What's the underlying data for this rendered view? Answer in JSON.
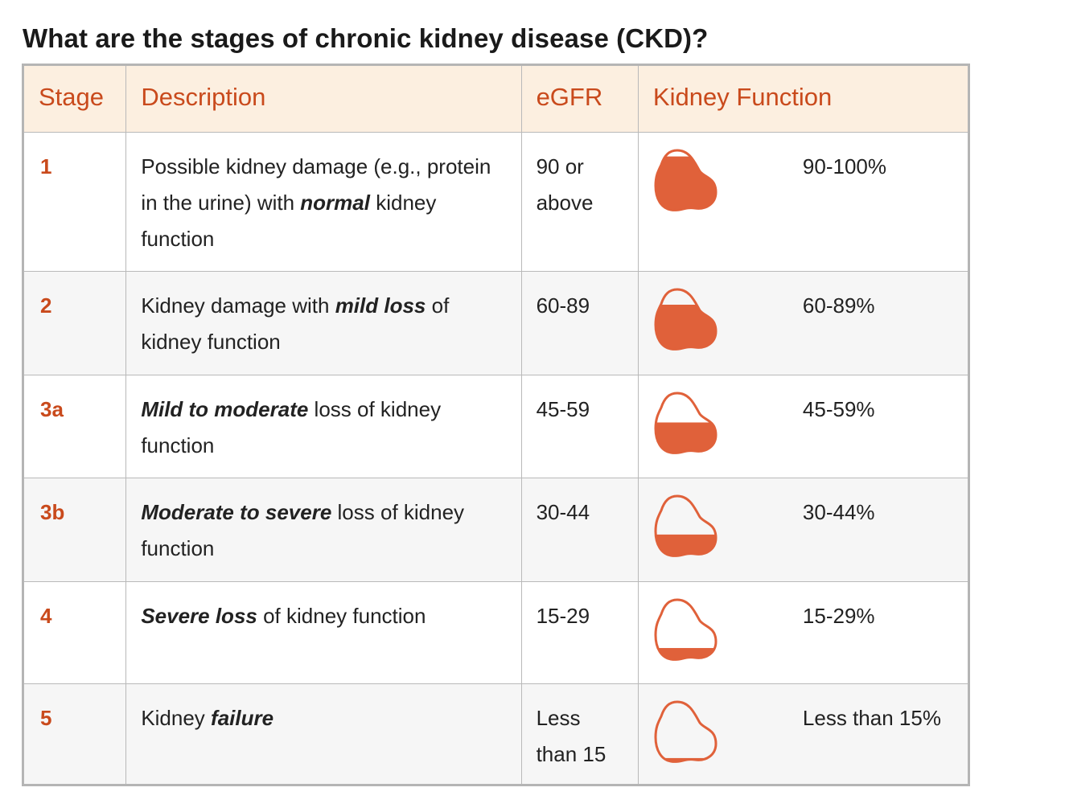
{
  "title": "What are the stages of chronic kidney disease (CKD)?",
  "colors": {
    "accent": "#c94a1c",
    "kidney_fill": "#e0613a",
    "header_bg": "#fcefe0",
    "stripe_bg": "#f6f6f6",
    "border": "#b9b9b9"
  },
  "table": {
    "headers": {
      "stage": "Stage",
      "description": "Description",
      "egfr": "eGFR",
      "kidney_function": "Kidney Function"
    },
    "rows": [
      {
        "stage": "1",
        "desc_before": "Possible kidney damage (e.g., protein in the urine) with ",
        "desc_emphasis": "normal",
        "desc_after": " kidney function",
        "egfr": "90 or above",
        "kidney_function": "90-100%",
        "fill_level": 0.9,
        "icon": "kidney-fill-icon"
      },
      {
        "stage": "2",
        "desc_before": "Kidney damage with ",
        "desc_emphasis": "mild loss",
        "desc_after": " of kidney function",
        "egfr": "60-89",
        "kidney_function": "60-89%",
        "fill_level": 0.75,
        "icon": "kidney-fill-icon"
      },
      {
        "stage": "3a",
        "desc_before": "",
        "desc_emphasis": "Mild to moderate",
        "desc_after": " loss of kidney function",
        "egfr": "45-59",
        "kidney_function": "45-59%",
        "fill_level": 0.52,
        "icon": "kidney-fill-icon"
      },
      {
        "stage": "3b",
        "desc_before": "",
        "desc_emphasis": "Moderate to severe",
        "desc_after": " loss of kidney function",
        "egfr": "30-44",
        "kidney_function": "30-44%",
        "fill_level": 0.37,
        "icon": "kidney-fill-icon"
      },
      {
        "stage": "4",
        "desc_before": "",
        "desc_emphasis": "Severe loss",
        "desc_after": " of kidney function",
        "egfr": "15-29",
        "kidney_function": "15-29%",
        "fill_level": 0.21,
        "icon": "kidney-fill-icon"
      },
      {
        "stage": "5",
        "desc_before": "Kidney ",
        "desc_emphasis": "failure",
        "desc_after": "",
        "egfr": "Less than 15",
        "kidney_function": "Less than 15%",
        "fill_level": 0.08,
        "icon": "kidney-fill-icon"
      }
    ]
  }
}
